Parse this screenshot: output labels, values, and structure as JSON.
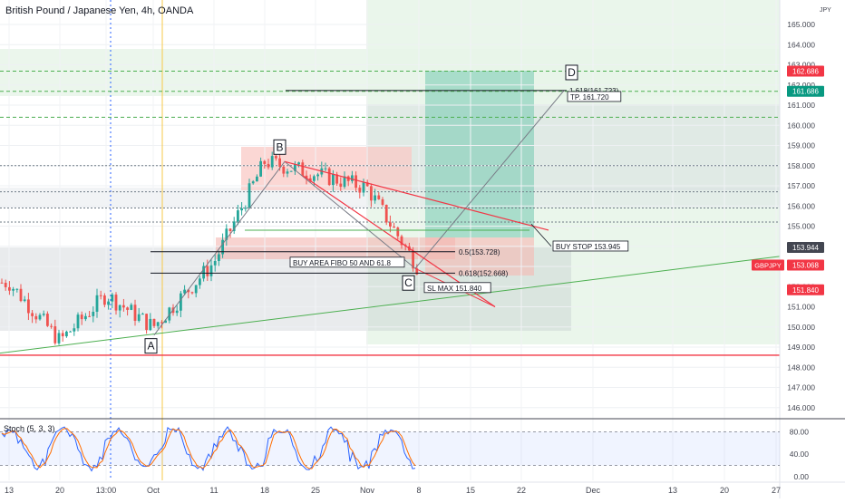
{
  "chart_title": "British Pound / Japanese Yen, 4h, OANDA",
  "currency_label": "JPY",
  "colors": {
    "up": "#26a69a",
    "down": "#ef5350",
    "support": "#f23645",
    "trend_green": "#4caf50",
    "highlight_axis": "#089981",
    "oct_line": "#f7c948",
    "divider": "#434651"
  },
  "chart_data": {
    "type": "line",
    "symbol": "GBPJPY",
    "timeframe": "4h",
    "ylim": [
      145.5,
      165.3
    ],
    "y_ticks": [
      146.0,
      147.0,
      148.0,
      149.0,
      150.0,
      151.0,
      152.0,
      153.0,
      154.0,
      155.0,
      156.0,
      157.0,
      158.0,
      159.0,
      160.0,
      161.0,
      162.0,
      163.0,
      164.0,
      165.0
    ],
    "x_ticks": [
      "13",
      "20",
      "13:00",
      "Oct",
      "11",
      "18",
      "25",
      "Nov",
      "8",
      "15",
      "22",
      "Dec",
      "13",
      "20",
      "27"
    ],
    "price_path": [
      [
        "13",
        152.2
      ],
      [
        "20",
        149.3
      ],
      [
        "13:00",
        151.6
      ],
      [
        "Oct",
        150.0
      ],
      [
        "11",
        153.2
      ],
      [
        "18",
        158.2
      ],
      [
        "25",
        157.6
      ],
      [
        "Nov",
        156.9
      ],
      [
        "8",
        152.9
      ]
    ],
    "axis_badges": [
      {
        "text": "162.686",
        "value": 162.686,
        "kind": "red"
      },
      {
        "text": "161.686",
        "value": 161.686,
        "kind": "green"
      },
      {
        "text": "153.944",
        "value": 153.944,
        "kind": "dark"
      },
      {
        "text": "153.068",
        "value": 153.068,
        "kind": "red"
      },
      {
        "text": "151.840",
        "value": 151.84,
        "kind": "red"
      }
    ],
    "symbol_badge": {
      "text": "GBPJPY",
      "value": 153.068
    },
    "horizontal_levels": [
      162.686,
      161.686,
      160.4,
      158.0,
      156.7,
      155.9,
      155.2,
      148.6
    ],
    "wave_points": [
      {
        "label": "A",
        "value": 149.3
      },
      {
        "label": "B",
        "value": 158.2
      },
      {
        "label": "C",
        "value": 152.9
      },
      {
        "label": "D",
        "value": 161.72
      }
    ],
    "fib_levels": [
      {
        "text": "0.5(153.728)",
        "value": 153.728
      },
      {
        "text": "0.618(152.668)",
        "value": 152.668
      },
      {
        "text": "1.618(161.723)",
        "value": 161.723
      }
    ],
    "annotations": [
      {
        "text": "BUY AREA FIBO 50 AND 61.8",
        "value": 153.1
      },
      {
        "text": "BUY STOP 153.945",
        "value": 153.945
      },
      {
        "text": "SL MAX 151.840",
        "value": 151.84
      },
      {
        "text": "TP. 161.720",
        "value": 161.72
      }
    ],
    "oscillator": {
      "name": "Stoch (5, 3, 3)",
      "ylim": [
        0,
        100
      ],
      "levels": [
        80,
        20
      ],
      "y_ticks": [
        "80.00",
        "40.00",
        "0.00"
      ],
      "k_color": "#2962ff",
      "d_color": "#ff6d00"
    }
  }
}
